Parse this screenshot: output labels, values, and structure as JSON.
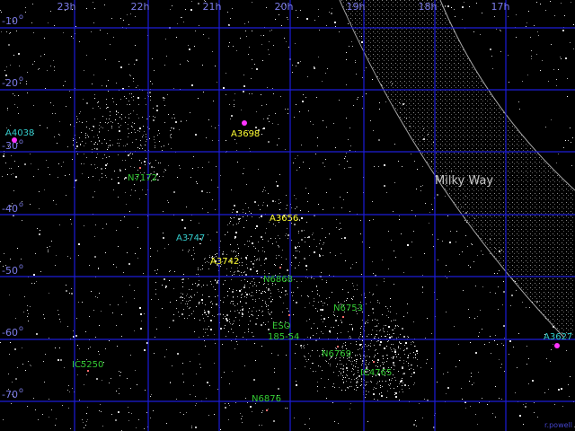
{
  "colors": {
    "background": "#000000",
    "grid": "#1c1cd8",
    "stars": "#ffffff",
    "milky_way": "#bbbbbb",
    "axis_label": "#7d7dea",
    "cluster_magenta": "#ff33ff",
    "label_cyan": "#33cccc",
    "label_yellow": "#ffff33",
    "label_green": "#33cc33",
    "credit": "#4444cc"
  },
  "ra_axis": [
    "23h",
    "22h",
    "21h",
    "20h",
    "19h",
    "18h",
    "17h"
  ],
  "dec_axis": [
    "-10",
    "-20",
    "-30",
    "-40",
    "-50",
    "-60",
    "-70"
  ],
  "milky_way_label": "Milky Way",
  "credit": "r.powell",
  "objects": [
    {
      "name": "A4038",
      "color": "cyan",
      "marker": true
    },
    {
      "name": "A3698",
      "color": "yellow",
      "marker": true
    },
    {
      "name": "N7172",
      "color": "green",
      "marker": false
    },
    {
      "name": "A3656",
      "color": "yellow",
      "marker": false
    },
    {
      "name": "A3747",
      "color": "cyan",
      "marker": false
    },
    {
      "name": "A3742",
      "color": "yellow",
      "marker": false
    },
    {
      "name": "N6868",
      "color": "green",
      "marker": false
    },
    {
      "name": "N6753",
      "color": "green",
      "marker": false
    },
    {
      "name": "ESO",
      "color": "green",
      "marker": false
    },
    {
      "name": "185-54",
      "color": "green",
      "marker": false
    },
    {
      "name": "A3627",
      "color": "cyan",
      "marker": true
    },
    {
      "name": "N6769",
      "color": "green",
      "marker": false
    },
    {
      "name": "IC5250",
      "color": "green",
      "marker": false
    },
    {
      "name": "IC4765",
      "color": "green",
      "marker": false
    },
    {
      "name": "N6876",
      "color": "green",
      "marker": false
    }
  ]
}
